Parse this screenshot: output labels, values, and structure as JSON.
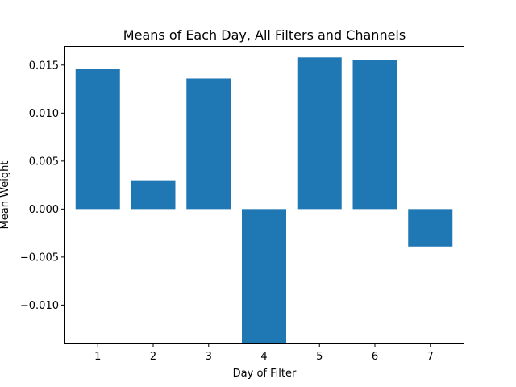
{
  "chart_data": {
    "type": "bar",
    "title": "Means of Each Day, All Filters and Channels",
    "xlabel": "Day of Filter",
    "ylabel": "Mean Weight",
    "categories": [
      "1",
      "2",
      "3",
      "4",
      "5",
      "6",
      "7"
    ],
    "values": [
      0.0146,
      0.003,
      0.0136,
      -0.014,
      0.0158,
      0.0155,
      -0.0039
    ],
    "ylim": [
      -0.014,
      0.017
    ],
    "yticks": [
      -0.01,
      -0.005,
      0.0,
      0.005,
      0.01,
      0.015
    ],
    "ytick_labels": [
      "−0.010",
      "−0.005",
      "0.000",
      "0.005",
      "0.010",
      "0.015"
    ],
    "bar_color": "#1f77b4",
    "grid": false,
    "legend": null
  }
}
